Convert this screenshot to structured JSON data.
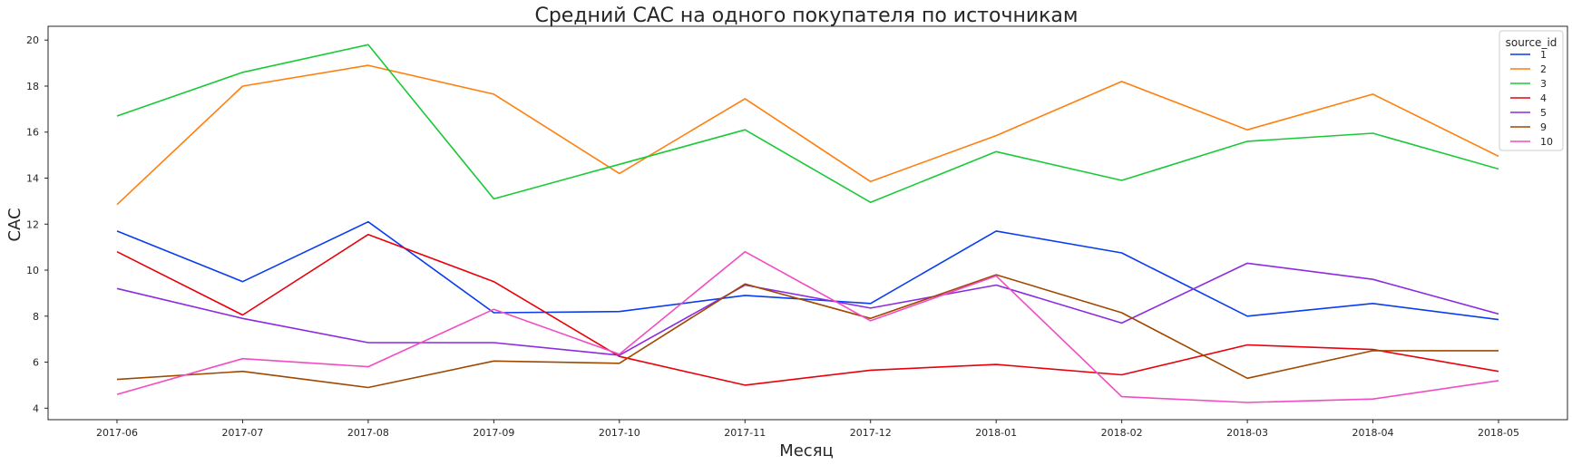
{
  "chart_data": {
    "type": "line",
    "title": "Средний CAC на одного покупателя по источникам",
    "xlabel": "Месяц",
    "ylabel": "CAC",
    "ylim": [
      3.5,
      20.6
    ],
    "yticks": [
      4,
      6,
      8,
      10,
      12,
      14,
      16,
      18,
      20
    ],
    "grid": false,
    "legend": {
      "title": "source_id",
      "placement": "top-right"
    },
    "categories": [
      "2017-06",
      "2017-07",
      "2017-08",
      "2017-09",
      "2017-10",
      "2017-11",
      "2017-12",
      "2018-01",
      "2018-02",
      "2018-03",
      "2018-04",
      "2018-05"
    ],
    "series": [
      {
        "name": "1",
        "color": "#0a3cf0",
        "values": [
          11.7,
          9.5,
          12.1,
          8.15,
          8.2,
          8.9,
          8.55,
          11.7,
          10.75,
          8.0,
          8.55,
          7.85
        ]
      },
      {
        "name": "2",
        "color": "#ff7f0e",
        "values": [
          12.85,
          18.0,
          18.9,
          17.65,
          14.2,
          17.45,
          13.85,
          15.85,
          18.2,
          16.1,
          17.65,
          14.95
        ]
      },
      {
        "name": "3",
        "color": "#1ac938",
        "values": [
          16.7,
          18.6,
          19.8,
          13.1,
          14.6,
          16.1,
          12.95,
          15.15,
          13.9,
          15.6,
          15.95,
          14.4
        ]
      },
      {
        "name": "4",
        "color": "#e8000b",
        "values": [
          10.8,
          8.05,
          11.55,
          9.5,
          6.25,
          5.0,
          5.65,
          5.9,
          5.45,
          6.75,
          6.55,
          5.6
        ]
      },
      {
        "name": "5",
        "color": "#8b2be2",
        "values": [
          9.2,
          7.9,
          6.85,
          6.85,
          6.3,
          9.35,
          8.35,
          9.35,
          7.7,
          10.3,
          9.6,
          8.1
        ]
      },
      {
        "name": "9",
        "color": "#9f4800",
        "values": [
          5.25,
          5.6,
          4.9,
          6.05,
          5.95,
          9.4,
          7.9,
          9.8,
          8.15,
          5.3,
          6.5,
          6.5
        ]
      },
      {
        "name": "10",
        "color": "#f14cc1",
        "values": [
          4.6,
          6.15,
          5.8,
          8.3,
          6.35,
          10.8,
          7.8,
          9.75,
          4.5,
          4.25,
          4.4,
          5.2
        ]
      }
    ]
  }
}
